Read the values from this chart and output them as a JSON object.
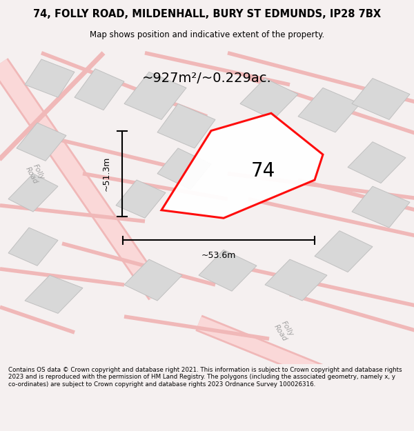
{
  "title": "74, FOLLY ROAD, MILDENHALL, BURY ST EDMUNDS, IP28 7BX",
  "subtitle": "Map shows position and indicative extent of the property.",
  "footer": "Contains OS data © Crown copyright and database right 2021. This information is subject to Crown copyright and database rights 2023 and is reproduced with the permission of HM Land Registry. The polygons (including the associated geometry, namely x, y co-ordinates) are subject to Crown copyright and database rights 2023 Ordnance Survey 100026316.",
  "area_label": "~927m²/~0.229ac.",
  "number_label": "74",
  "dim_vertical": "~51.3m",
  "dim_horizontal": "~53.6m",
  "road_label_1": "Folly\nRoad",
  "road_label_2": "Folly Road",
  "bg_color": "#f5f0f0",
  "map_bg": "#ffffff",
  "road_color": "#f0b8b8",
  "building_fill": "#d8d8d8",
  "building_edge": "#c0c0c0"
}
